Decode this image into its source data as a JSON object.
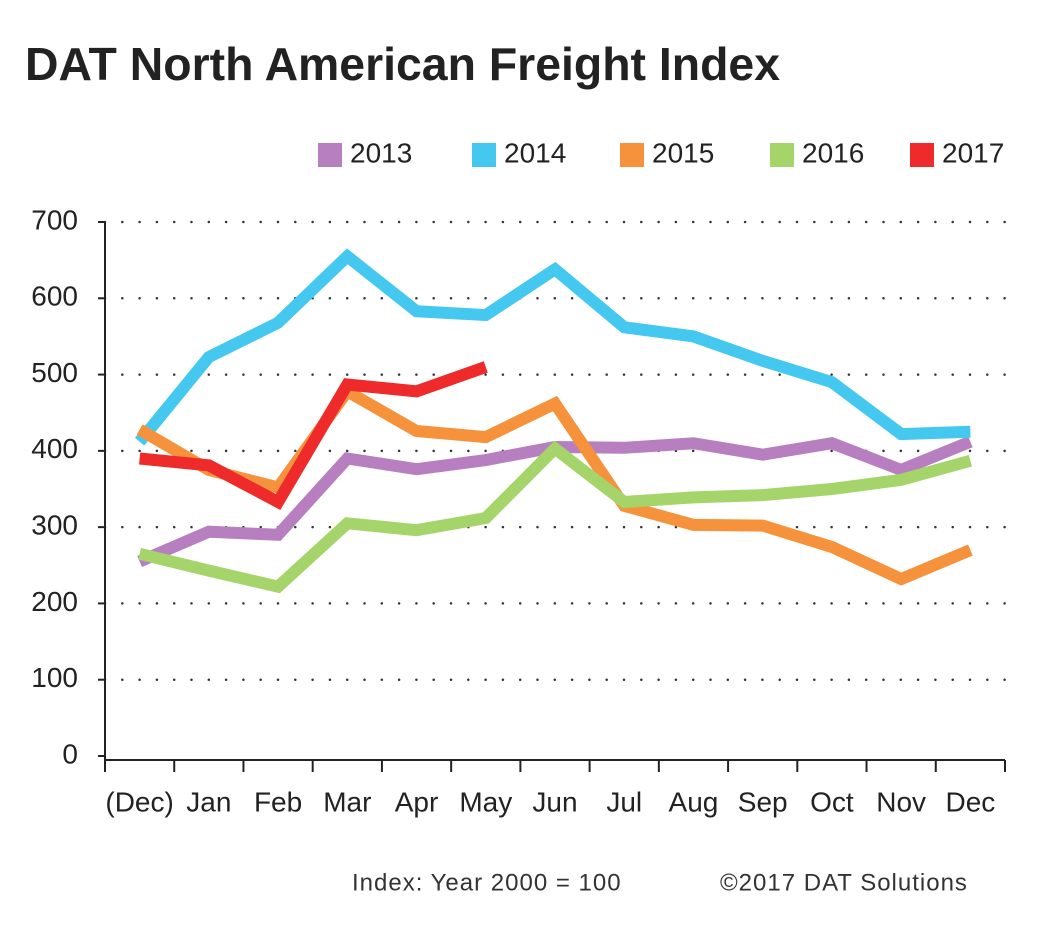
{
  "chart_data": {
    "type": "line",
    "title": "DAT North American Freight Index",
    "categories": [
      "(Dec)",
      "Jan",
      "Feb",
      "Mar",
      "Apr",
      "May",
      "Jun",
      "Jul",
      "Aug",
      "Sep",
      "Oct",
      "Nov",
      "Dec"
    ],
    "series": [
      {
        "name": "2013",
        "color": "#b77fc0",
        "values": [
          255,
          294,
          290,
          390,
          376,
          388,
          405,
          404,
          410,
          395,
          410,
          375,
          412
        ]
      },
      {
        "name": "2014",
        "color": "#45c8f0",
        "values": [
          412,
          523,
          568,
          655,
          583,
          578,
          638,
          562,
          550,
          518,
          490,
          422,
          425
        ]
      },
      {
        "name": "2015",
        "color": "#f5923b",
        "values": [
          428,
          375,
          352,
          478,
          426,
          418,
          462,
          328,
          303,
          302,
          274,
          232,
          270
        ]
      },
      {
        "name": "2016",
        "color": "#a5d46a",
        "values": [
          265,
          243,
          222,
          305,
          296,
          312,
          403,
          333,
          339,
          342,
          350,
          362,
          387
        ]
      },
      {
        "name": "2017",
        "color": "#ee2a2a",
        "values": [
          390,
          381,
          333,
          487,
          478,
          510,
          null,
          null,
          null,
          null,
          null,
          null,
          null
        ]
      }
    ],
    "ylim": [
      0,
      700
    ],
    "yticks": [
      0,
      100,
      200,
      300,
      400,
      500,
      600,
      700
    ],
    "grid": true,
    "annotations": [
      "Index: Year 2000 = 100",
      "©2017 DAT Solutions"
    ]
  }
}
